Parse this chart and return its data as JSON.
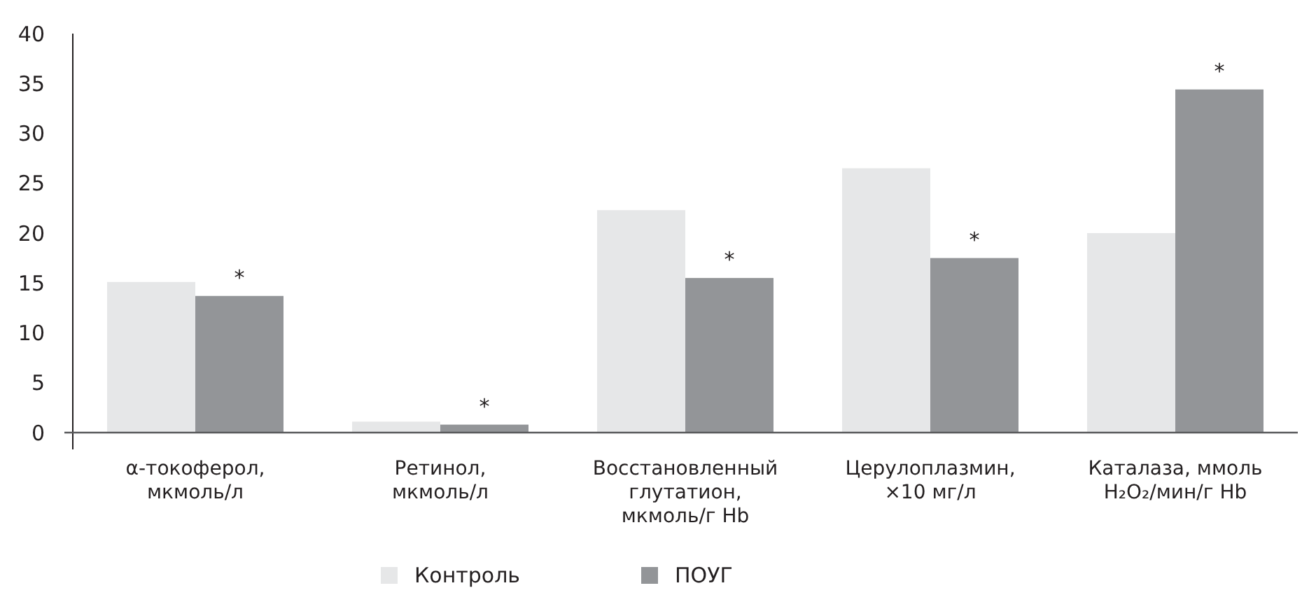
{
  "chart_data": {
    "type": "bar",
    "categories": [
      "α-токоферол,\nмкмоль/л",
      "Ретинол,\nмкмоль/л",
      "Восстановленный\nглутатион,\nмкмоль/г Hb",
      "Церулоплазмин,\n×10 мг/л",
      "Каталаза, ммоль\nH₂O₂/мин/г Hb"
    ],
    "series": [
      {
        "name": "Контроль",
        "color": "#e6e7e8",
        "values": [
          15.1,
          1.1,
          22.3,
          26.5,
          20.0
        ]
      },
      {
        "name": "ПОУГ",
        "color": "#939598",
        "values": [
          13.7,
          0.8,
          15.5,
          17.5,
          34.4
        ]
      }
    ],
    "ylim": [
      0,
      40
    ],
    "yticks": [
      0,
      5,
      10,
      15,
      20,
      25,
      30,
      35,
      40
    ],
    "grid": false,
    "legend": "bottom",
    "annotations": [
      {
        "text": "*",
        "x": "α-токоферол,\nмкмоль/л",
        "y": 13.7
      },
      {
        "text": "*",
        "x": "Ретинол,\nмкмоль/л",
        "y": 0.8
      },
      {
        "text": "*",
        "x": "Восстановленный\nглутатион,\nмкмоль/г Hb",
        "y": 15.5
      },
      {
        "text": "*",
        "x": "Церулоплазмин,\n×10 мг/л",
        "y": 17.5
      },
      {
        "text": "*",
        "x": "Каталаза, ммоль\nH₂O₂/мин/г Hb",
        "y": 34.4
      }
    ]
  }
}
